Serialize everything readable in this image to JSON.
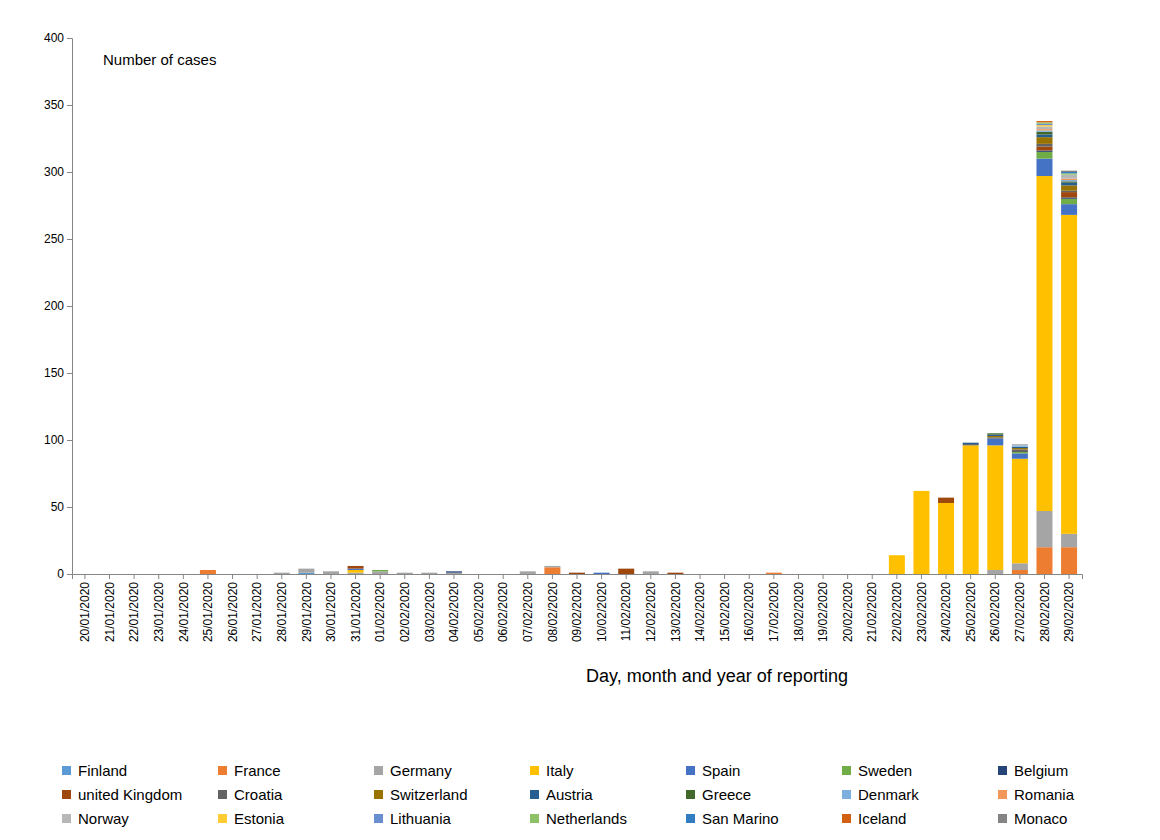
{
  "chart_data": {
    "type": "bar",
    "stacked": true,
    "legend": "bottom",
    "y_label": "Number of cases",
    "x_label": "Day, month and year of reporting",
    "ylim": [
      0,
      400
    ],
    "yticks": [
      0,
      50,
      100,
      150,
      200,
      250,
      300,
      350,
      400
    ],
    "categories": [
      "20/01/2020",
      "21/01/2020",
      "22/01/2020",
      "23/01/2020",
      "24/01/2020",
      "25/01/2020",
      "26/01/2020",
      "27/01/2020",
      "28/01/2020",
      "29/01/2020",
      "30/01/2020",
      "31/01/2020",
      "01/02/2020",
      "02/02/2020",
      "03/02/2020",
      "04/02/2020",
      "05/02/2020",
      "06/02/2020",
      "07/02/2020",
      "08/02/2020",
      "09/02/2020",
      "10/02/2020",
      "11/02/2020",
      "12/02/2020",
      "13/02/2020",
      "14/02/2020",
      "15/02/2020",
      "16/02/2020",
      "17/02/2020",
      "18/02/2020",
      "19/02/2020",
      "20/02/2020",
      "21/02/2020",
      "22/02/2020",
      "23/02/2020",
      "24/02/2020",
      "25/02/2020",
      "26/02/2020",
      "27/02/2020",
      "28/02/2020",
      "29/02/2020"
    ],
    "series": [
      {
        "name": "Finland",
        "color": "#5b9bd5",
        "values": [
          0,
          0,
          0,
          0,
          0,
          0,
          0,
          0,
          0,
          1,
          0,
          0,
          0,
          0,
          0,
          0,
          0,
          0,
          0,
          0,
          0,
          0,
          0,
          0,
          0,
          0,
          0,
          0,
          0,
          0,
          0,
          0,
          0,
          0,
          0,
          0,
          0,
          0,
          0,
          0,
          0
        ]
      },
      {
        "name": "France",
        "color": "#ed7d31",
        "values": [
          0,
          0,
          0,
          0,
          0,
          3,
          0,
          0,
          0,
          0,
          0,
          0,
          0,
          0,
          0,
          0,
          0,
          0,
          0,
          5,
          0,
          0,
          0,
          0,
          0,
          0,
          0,
          0,
          1,
          0,
          0,
          0,
          0,
          0,
          0,
          0,
          0,
          0,
          3,
          20,
          20
        ]
      },
      {
        "name": "Germany",
        "color": "#a5a5a5",
        "values": [
          0,
          0,
          0,
          0,
          0,
          0,
          0,
          0,
          1,
          3,
          2,
          1,
          2,
          1,
          1,
          1,
          0,
          0,
          2,
          1,
          0,
          0,
          0,
          2,
          0,
          0,
          0,
          0,
          0,
          0,
          0,
          0,
          0,
          0,
          0,
          0,
          0,
          3,
          5,
          27,
          10
        ]
      },
      {
        "name": "Italy",
        "color": "#ffc000",
        "values": [
          0,
          0,
          0,
          0,
          0,
          0,
          0,
          0,
          0,
          0,
          0,
          2,
          0,
          0,
          0,
          0,
          0,
          0,
          0,
          0,
          0,
          0,
          0,
          0,
          0,
          0,
          0,
          0,
          0,
          0,
          0,
          0,
          0,
          14,
          62,
          53,
          96,
          93,
          78,
          250,
          238
        ]
      },
      {
        "name": "Spain",
        "color": "#4472c4",
        "values": [
          0,
          0,
          0,
          0,
          0,
          0,
          0,
          0,
          0,
          0,
          0,
          1,
          0,
          0,
          0,
          0,
          0,
          0,
          0,
          0,
          0,
          1,
          0,
          0,
          0,
          0,
          0,
          0,
          0,
          0,
          0,
          0,
          0,
          0,
          0,
          0,
          0,
          5,
          4,
          13,
          8
        ]
      },
      {
        "name": "Sweden",
        "color": "#70ad47",
        "values": [
          0,
          0,
          0,
          0,
          0,
          0,
          0,
          0,
          0,
          0,
          0,
          0,
          1,
          0,
          0,
          0,
          0,
          0,
          0,
          0,
          0,
          0,
          0,
          0,
          0,
          0,
          0,
          0,
          0,
          0,
          0,
          0,
          0,
          0,
          0,
          0,
          0,
          0,
          1,
          5,
          4
        ]
      },
      {
        "name": "Belgium",
        "color": "#264478",
        "values": [
          0,
          0,
          0,
          0,
          0,
          0,
          0,
          0,
          0,
          0,
          0,
          0,
          0,
          0,
          0,
          1,
          0,
          0,
          0,
          0,
          0,
          0,
          0,
          0,
          0,
          0,
          0,
          0,
          0,
          0,
          0,
          0,
          0,
          0,
          0,
          0,
          0,
          0,
          0,
          1,
          1
        ]
      },
      {
        "name": "united Kingdom",
        "color": "#9e480e",
        "values": [
          0,
          0,
          0,
          0,
          0,
          0,
          0,
          0,
          0,
          0,
          0,
          2,
          0,
          0,
          0,
          0,
          0,
          0,
          0,
          0,
          1,
          0,
          4,
          0,
          1,
          0,
          0,
          0,
          0,
          0,
          0,
          0,
          0,
          0,
          0,
          4,
          0,
          0,
          0,
          3,
          4
        ]
      },
      {
        "name": "Croatia",
        "color": "#636363",
        "values": [
          0,
          0,
          0,
          0,
          0,
          0,
          0,
          0,
          0,
          0,
          0,
          0,
          0,
          0,
          0,
          0,
          0,
          0,
          0,
          0,
          0,
          0,
          0,
          0,
          0,
          0,
          0,
          0,
          0,
          0,
          0,
          0,
          0,
          0,
          0,
          0,
          1,
          1,
          2,
          2,
          1
        ]
      },
      {
        "name": "Switzerland",
        "color": "#997300",
        "values": [
          0,
          0,
          0,
          0,
          0,
          0,
          0,
          0,
          0,
          0,
          0,
          0,
          0,
          0,
          0,
          0,
          0,
          0,
          0,
          0,
          0,
          0,
          0,
          0,
          0,
          0,
          0,
          0,
          0,
          0,
          0,
          0,
          0,
          0,
          0,
          0,
          0,
          1,
          1,
          5,
          4
        ]
      },
      {
        "name": "Austria",
        "color": "#255e91",
        "values": [
          0,
          0,
          0,
          0,
          0,
          0,
          0,
          0,
          0,
          0,
          0,
          0,
          0,
          0,
          0,
          0,
          0,
          0,
          0,
          0,
          0,
          0,
          0,
          0,
          0,
          0,
          0,
          0,
          0,
          0,
          0,
          0,
          0,
          0,
          0,
          0,
          1,
          1,
          1,
          2,
          2
        ]
      },
      {
        "name": "Greece",
        "color": "#43682b",
        "values": [
          0,
          0,
          0,
          0,
          0,
          0,
          0,
          0,
          0,
          0,
          0,
          0,
          0,
          0,
          0,
          0,
          0,
          0,
          0,
          0,
          0,
          0,
          0,
          0,
          0,
          0,
          0,
          0,
          0,
          0,
          0,
          0,
          0,
          0,
          0,
          0,
          0,
          1,
          0,
          2,
          1
        ]
      },
      {
        "name": "Denmark",
        "color": "#7cafdd",
        "values": [
          0,
          0,
          0,
          0,
          0,
          0,
          0,
          0,
          0,
          0,
          0,
          0,
          0,
          0,
          0,
          0,
          0,
          0,
          0,
          0,
          0,
          0,
          0,
          0,
          0,
          0,
          0,
          0,
          0,
          0,
          0,
          0,
          0,
          0,
          0,
          0,
          0,
          0,
          1,
          1,
          1
        ]
      },
      {
        "name": "Romania",
        "color": "#f1975a",
        "values": [
          0,
          0,
          0,
          0,
          0,
          0,
          0,
          0,
          0,
          0,
          0,
          0,
          0,
          0,
          0,
          0,
          0,
          0,
          0,
          0,
          0,
          0,
          0,
          0,
          0,
          0,
          0,
          0,
          0,
          0,
          0,
          0,
          0,
          0,
          0,
          0,
          0,
          0,
          0,
          1,
          1
        ]
      },
      {
        "name": "Norway",
        "color": "#b7b7b7",
        "values": [
          0,
          0,
          0,
          0,
          0,
          0,
          0,
          0,
          0,
          0,
          0,
          0,
          0,
          0,
          0,
          0,
          0,
          0,
          0,
          0,
          0,
          0,
          0,
          0,
          0,
          0,
          0,
          0,
          0,
          0,
          0,
          0,
          0,
          0,
          0,
          0,
          0,
          0,
          1,
          2,
          3
        ]
      },
      {
        "name": "Estonia",
        "color": "#ffcd33",
        "values": [
          0,
          0,
          0,
          0,
          0,
          0,
          0,
          0,
          0,
          0,
          0,
          0,
          0,
          0,
          0,
          0,
          0,
          0,
          0,
          0,
          0,
          0,
          0,
          0,
          0,
          0,
          0,
          0,
          0,
          0,
          0,
          0,
          0,
          0,
          0,
          0,
          0,
          0,
          0,
          1,
          0
        ]
      },
      {
        "name": "Lithuania",
        "color": "#698ed0",
        "values": [
          0,
          0,
          0,
          0,
          0,
          0,
          0,
          0,
          0,
          0,
          0,
          0,
          0,
          0,
          0,
          0,
          0,
          0,
          0,
          0,
          0,
          0,
          0,
          0,
          0,
          0,
          0,
          0,
          0,
          0,
          0,
          0,
          0,
          0,
          0,
          0,
          0,
          0,
          0,
          1,
          0
        ]
      },
      {
        "name": "Netherlands",
        "color": "#8cc168",
        "values": [
          0,
          0,
          0,
          0,
          0,
          0,
          0,
          0,
          0,
          0,
          0,
          0,
          0,
          0,
          0,
          0,
          0,
          0,
          0,
          0,
          0,
          0,
          0,
          0,
          0,
          0,
          0,
          0,
          0,
          0,
          0,
          0,
          0,
          0,
          0,
          0,
          0,
          0,
          0,
          1,
          1
        ]
      },
      {
        "name": "San Marino",
        "color": "#327dc2",
        "values": [
          0,
          0,
          0,
          0,
          0,
          0,
          0,
          0,
          0,
          0,
          0,
          0,
          0,
          0,
          0,
          0,
          0,
          0,
          0,
          0,
          0,
          0,
          0,
          0,
          0,
          0,
          0,
          0,
          0,
          0,
          0,
          0,
          0,
          0,
          0,
          0,
          0,
          0,
          0,
          0,
          1
        ]
      },
      {
        "name": "Iceland",
        "color": "#d26012",
        "values": [
          0,
          0,
          0,
          0,
          0,
          0,
          0,
          0,
          0,
          0,
          0,
          0,
          0,
          0,
          0,
          0,
          0,
          0,
          0,
          0,
          0,
          0,
          0,
          0,
          0,
          0,
          0,
          0,
          0,
          0,
          0,
          0,
          0,
          0,
          0,
          0,
          0,
          0,
          0,
          1,
          0
        ]
      },
      {
        "name": "Monaco",
        "color": "#848484",
        "values": [
          0,
          0,
          0,
          0,
          0,
          0,
          0,
          0,
          0,
          0,
          0,
          0,
          0,
          0,
          0,
          0,
          0,
          0,
          0,
          0,
          0,
          0,
          0,
          0,
          0,
          0,
          0,
          0,
          0,
          0,
          0,
          0,
          0,
          0,
          0,
          0,
          0,
          0,
          0,
          0,
          1
        ]
      }
    ]
  }
}
